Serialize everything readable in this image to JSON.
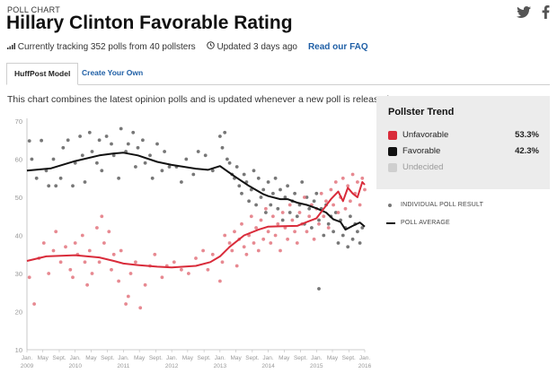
{
  "header": {
    "eyebrow": "POLL CHART",
    "title": "Hillary Clinton Favorable Rating",
    "social": {
      "twitter_icon": "twitter-icon",
      "facebook_icon": "facebook-icon"
    }
  },
  "meta": {
    "tracking": "Currently tracking 352 polls from 40 pollsters",
    "updated": "Updated 3 days ago",
    "faq": "Read our FAQ"
  },
  "tabs": [
    "HuffPost Model",
    "Create Your Own"
  ],
  "description": "This chart combines the latest opinion polls and is updated whenever a new poll is released.",
  "trend_panel": {
    "heading": "Pollster Trend",
    "items": [
      {
        "label": "Unfavorable",
        "value": "53.3%",
        "color": "#d92b3a"
      },
      {
        "label": "Favorable",
        "value": "42.3%",
        "color": "#111111"
      },
      {
        "label": "Undecided",
        "value": "",
        "color": "#cfcfcf"
      }
    ]
  },
  "legend": {
    "dots": "INDIVIDUAL POLL RESULT",
    "line": "POLL AVERAGE"
  },
  "colors": {
    "unfavorable": "#d92b3a",
    "favorable": "#111111",
    "link": "#1f5fa6",
    "axis": "#999999"
  },
  "chart_data": {
    "type": "scatter",
    "ylim": [
      10,
      70
    ],
    "yticks": [
      10,
      20,
      30,
      40,
      50,
      60,
      70
    ],
    "xlim": [
      2009.0,
      2016.0
    ],
    "xticks": [
      {
        "pos": 2009.0,
        "label": "Jan.",
        "year": "2009"
      },
      {
        "pos": 2009.33,
        "label": "May",
        "year": ""
      },
      {
        "pos": 2009.67,
        "label": "Sept.",
        "year": ""
      },
      {
        "pos": 2010.0,
        "label": "Jan.",
        "year": "2010"
      },
      {
        "pos": 2010.33,
        "label": "May",
        "year": ""
      },
      {
        "pos": 2010.67,
        "label": "Sept.",
        "year": ""
      },
      {
        "pos": 2011.0,
        "label": "Jan.",
        "year": "2011"
      },
      {
        "pos": 2011.33,
        "label": "May",
        "year": ""
      },
      {
        "pos": 2011.67,
        "label": "Sept.",
        "year": ""
      },
      {
        "pos": 2012.0,
        "label": "Jan.",
        "year": "2012"
      },
      {
        "pos": 2012.33,
        "label": "May",
        "year": ""
      },
      {
        "pos": 2012.67,
        "label": "Sept.",
        "year": ""
      },
      {
        "pos": 2013.0,
        "label": "Jan.",
        "year": "2013"
      },
      {
        "pos": 2013.33,
        "label": "May",
        "year": ""
      },
      {
        "pos": 2013.67,
        "label": "Sept.",
        "year": ""
      },
      {
        "pos": 2014.0,
        "label": "Jan.",
        "year": "2014"
      },
      {
        "pos": 2014.33,
        "label": "May",
        "year": ""
      },
      {
        "pos": 2014.67,
        "label": "Sept.",
        "year": ""
      },
      {
        "pos": 2015.0,
        "label": "Jan.",
        "year": "2015"
      },
      {
        "pos": 2015.33,
        "label": "May",
        "year": ""
      },
      {
        "pos": 2015.67,
        "label": "Sept.",
        "year": ""
      },
      {
        "pos": 2016.0,
        "label": "Jan.",
        "year": "2016"
      }
    ],
    "series": [
      {
        "name": "Favorable",
        "color": "#111111",
        "average": [
          [
            2009.0,
            57
          ],
          [
            2009.5,
            57.6
          ],
          [
            2010.0,
            59.5
          ],
          [
            2010.5,
            61
          ],
          [
            2010.8,
            61.5
          ],
          [
            2011.0,
            61.7
          ],
          [
            2011.3,
            61
          ],
          [
            2011.7,
            59.3
          ],
          [
            2012.0,
            58.5
          ],
          [
            2012.5,
            57.5
          ],
          [
            2012.75,
            57.2
          ],
          [
            2013.0,
            58.2
          ],
          [
            2013.3,
            55.5
          ],
          [
            2013.6,
            53
          ],
          [
            2013.9,
            50.8
          ],
          [
            2014.0,
            50.3
          ],
          [
            2014.25,
            49.5
          ],
          [
            2014.4,
            49.5
          ],
          [
            2014.6,
            48.6
          ],
          [
            2014.8,
            48
          ],
          [
            2015.0,
            47.1
          ],
          [
            2015.2,
            46
          ],
          [
            2015.35,
            44.2
          ],
          [
            2015.5,
            43.5
          ],
          [
            2015.6,
            41.5
          ],
          [
            2015.75,
            42.5
          ],
          [
            2015.9,
            43.4
          ],
          [
            2016.0,
            42.3
          ]
        ],
        "points": [
          [
            2009.05,
            64.8
          ],
          [
            2009.3,
            64.9
          ],
          [
            2009.1,
            60
          ],
          [
            2009.2,
            55
          ],
          [
            2009.4,
            57
          ],
          [
            2009.45,
            53
          ],
          [
            2009.55,
            60
          ],
          [
            2009.6,
            53
          ],
          [
            2009.7,
            55
          ],
          [
            2009.75,
            63
          ],
          [
            2009.85,
            65
          ],
          [
            2009.95,
            53
          ],
          [
            2010.0,
            59
          ],
          [
            2010.1,
            66
          ],
          [
            2010.15,
            61
          ],
          [
            2010.2,
            54
          ],
          [
            2010.3,
            67
          ],
          [
            2010.35,
            62
          ],
          [
            2010.45,
            59
          ],
          [
            2010.5,
            65
          ],
          [
            2010.55,
            57
          ],
          [
            2010.65,
            66
          ],
          [
            2010.75,
            64
          ],
          [
            2010.8,
            61
          ],
          [
            2010.9,
            55
          ],
          [
            2010.95,
            68
          ],
          [
            2011.05,
            62
          ],
          [
            2011.1,
            64
          ],
          [
            2011.2,
            67
          ],
          [
            2011.25,
            58
          ],
          [
            2011.3,
            63
          ],
          [
            2011.4,
            65
          ],
          [
            2011.45,
            59
          ],
          [
            2011.55,
            61
          ],
          [
            2011.6,
            55
          ],
          [
            2011.7,
            64
          ],
          [
            2011.8,
            57
          ],
          [
            2011.85,
            62
          ],
          [
            2011.95,
            58
          ],
          [
            2012.1,
            58
          ],
          [
            2012.2,
            54
          ],
          [
            2012.3,
            60
          ],
          [
            2012.45,
            56
          ],
          [
            2012.55,
            62
          ],
          [
            2012.7,
            61
          ],
          [
            2012.85,
            57
          ],
          [
            2013.0,
            66
          ],
          [
            2013.05,
            63
          ],
          [
            2013.1,
            67
          ],
          [
            2013.15,
            60
          ],
          [
            2013.2,
            59
          ],
          [
            2013.25,
            56
          ],
          [
            2013.3,
            55
          ],
          [
            2013.35,
            58
          ],
          [
            2013.4,
            53
          ],
          [
            2013.45,
            51
          ],
          [
            2013.5,
            56
          ],
          [
            2013.55,
            54
          ],
          [
            2013.6,
            49
          ],
          [
            2013.65,
            52
          ],
          [
            2013.7,
            57
          ],
          [
            2013.75,
            48
          ],
          [
            2013.8,
            55
          ],
          [
            2013.85,
            50
          ],
          [
            2013.9,
            52
          ],
          [
            2013.95,
            46
          ],
          [
            2014.0,
            54
          ],
          [
            2014.05,
            48
          ],
          [
            2014.1,
            51
          ],
          [
            2014.15,
            55
          ],
          [
            2014.2,
            47
          ],
          [
            2014.25,
            52
          ],
          [
            2014.3,
            44
          ],
          [
            2014.35,
            50
          ],
          [
            2014.4,
            53
          ],
          [
            2014.45,
            46
          ],
          [
            2014.5,
            49
          ],
          [
            2014.55,
            51
          ],
          [
            2014.6,
            45
          ],
          [
            2014.65,
            48
          ],
          [
            2014.7,
            54
          ],
          [
            2014.75,
            43
          ],
          [
            2014.8,
            50
          ],
          [
            2014.85,
            47
          ],
          [
            2014.9,
            42
          ],
          [
            2014.95,
            49
          ],
          [
            2015.0,
            51
          ],
          [
            2015.05,
            44
          ],
          [
            2015.1,
            47
          ],
          [
            2015.15,
            40
          ],
          [
            2015.2,
            48
          ],
          [
            2015.25,
            43
          ],
          [
            2015.3,
            45
          ],
          [
            2015.35,
            41
          ],
          [
            2015.4,
            46
          ],
          [
            2015.45,
            38
          ],
          [
            2015.5,
            44
          ],
          [
            2015.55,
            40
          ],
          [
            2015.6,
            42
          ],
          [
            2015.65,
            37
          ],
          [
            2015.7,
            45
          ],
          [
            2015.75,
            39
          ],
          [
            2015.8,
            43
          ],
          [
            2015.85,
            41
          ],
          [
            2015.9,
            38
          ],
          [
            2015.95,
            42
          ],
          [
            2015.05,
            26
          ]
        ]
      },
      {
        "name": "Unfavorable",
        "color": "#d92b3a",
        "average": [
          [
            2009.0,
            33.3
          ],
          [
            2009.4,
            34.5
          ],
          [
            2010.0,
            34.8
          ],
          [
            2010.5,
            34.2
          ],
          [
            2010.8,
            33.3
          ],
          [
            2011.0,
            32.6
          ],
          [
            2011.3,
            32.2
          ],
          [
            2011.7,
            31.8
          ],
          [
            2012.0,
            31.6
          ],
          [
            2012.5,
            32
          ],
          [
            2012.8,
            33
          ],
          [
            2013.0,
            34.5
          ],
          [
            2013.2,
            37
          ],
          [
            2013.5,
            40
          ],
          [
            2013.8,
            41.5
          ],
          [
            2014.0,
            42.3
          ],
          [
            2014.3,
            42.4
          ],
          [
            2014.6,
            42.5
          ],
          [
            2014.8,
            43.5
          ],
          [
            2015.0,
            44.5
          ],
          [
            2015.15,
            47
          ],
          [
            2015.3,
            49.5
          ],
          [
            2015.45,
            51.5
          ],
          [
            2015.55,
            49
          ],
          [
            2015.65,
            52.5
          ],
          [
            2015.75,
            51
          ],
          [
            2015.85,
            50
          ],
          [
            2015.95,
            54
          ],
          [
            2016.0,
            53.3
          ]
        ],
        "points": [
          [
            2009.05,
            29
          ],
          [
            2009.15,
            22
          ],
          [
            2009.25,
            34
          ],
          [
            2009.35,
            38
          ],
          [
            2009.45,
            30
          ],
          [
            2009.55,
            36
          ],
          [
            2009.6,
            41
          ],
          [
            2009.7,
            33
          ],
          [
            2009.8,
            37
          ],
          [
            2009.9,
            31
          ],
          [
            2010.0,
            38
          ],
          [
            2010.05,
            35
          ],
          [
            2010.15,
            40
          ],
          [
            2010.2,
            33
          ],
          [
            2010.3,
            36
          ],
          [
            2010.35,
            30
          ],
          [
            2010.45,
            42
          ],
          [
            2010.5,
            33
          ],
          [
            2010.55,
            45
          ],
          [
            2010.6,
            38
          ],
          [
            2010.7,
            41
          ],
          [
            2010.75,
            31
          ],
          [
            2010.8,
            35
          ],
          [
            2010.9,
            28
          ],
          [
            2010.95,
            36
          ],
          [
            2011.05,
            22
          ],
          [
            2011.1,
            24
          ],
          [
            2011.15,
            30
          ],
          [
            2011.25,
            33
          ],
          [
            2011.35,
            21
          ],
          [
            2011.45,
            27
          ],
          [
            2011.55,
            32
          ],
          [
            2011.65,
            35
          ],
          [
            2011.8,
            29
          ],
          [
            2011.9,
            32
          ],
          [
            2012.05,
            33
          ],
          [
            2012.2,
            31
          ],
          [
            2012.35,
            30
          ],
          [
            2012.5,
            34
          ],
          [
            2012.65,
            36
          ],
          [
            2012.75,
            31
          ],
          [
            2012.85,
            35
          ],
          [
            2013.0,
            28
          ],
          [
            2013.05,
            33
          ],
          [
            2013.1,
            40
          ],
          [
            2013.2,
            38
          ],
          [
            2013.25,
            36
          ],
          [
            2013.3,
            41
          ],
          [
            2013.35,
            32
          ],
          [
            2013.4,
            39
          ],
          [
            2013.45,
            43
          ],
          [
            2013.5,
            37
          ],
          [
            2013.55,
            35
          ],
          [
            2013.6,
            40
          ],
          [
            2013.65,
            45
          ],
          [
            2013.7,
            38
          ],
          [
            2013.75,
            42
          ],
          [
            2013.8,
            36
          ],
          [
            2013.85,
            44
          ],
          [
            2013.9,
            39
          ],
          [
            2013.95,
            47
          ],
          [
            2014.0,
            41
          ],
          [
            2014.05,
            38
          ],
          [
            2014.1,
            45
          ],
          [
            2014.15,
            40
          ],
          [
            2014.2,
            43
          ],
          [
            2014.25,
            36
          ],
          [
            2014.3,
            46
          ],
          [
            2014.35,
            42
          ],
          [
            2014.4,
            39
          ],
          [
            2014.45,
            48
          ],
          [
            2014.5,
            44
          ],
          [
            2014.55,
            41
          ],
          [
            2014.6,
            38
          ],
          [
            2014.65,
            46
          ],
          [
            2014.7,
            43
          ],
          [
            2014.75,
            50
          ],
          [
            2014.8,
            41
          ],
          [
            2014.85,
            45
          ],
          [
            2014.9,
            48
          ],
          [
            2014.95,
            39
          ],
          [
            2015.0,
            47
          ],
          [
            2015.05,
            43
          ],
          [
            2015.1,
            51
          ],
          [
            2015.15,
            45
          ],
          [
            2015.2,
            49
          ],
          [
            2015.25,
            42
          ],
          [
            2015.3,
            52
          ],
          [
            2015.35,
            48
          ],
          [
            2015.4,
            54
          ],
          [
            2015.45,
            46
          ],
          [
            2015.5,
            50
          ],
          [
            2015.55,
            55
          ],
          [
            2015.6,
            47
          ],
          [
            2015.65,
            53
          ],
          [
            2015.7,
            49
          ],
          [
            2015.75,
            56
          ],
          [
            2015.8,
            51
          ],
          [
            2015.85,
            54
          ],
          [
            2015.9,
            48
          ],
          [
            2015.95,
            55
          ],
          [
            2016.0,
            52
          ],
          [
            2009.95,
            29
          ],
          [
            2010.25,
            27
          ]
        ]
      }
    ]
  }
}
